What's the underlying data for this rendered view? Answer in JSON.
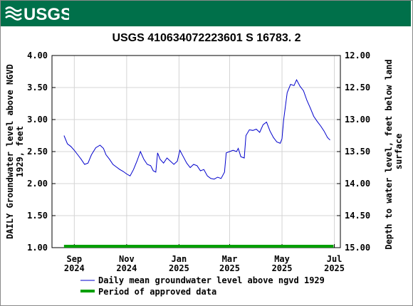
{
  "banner": {
    "logo_text": "USGS",
    "color": "#00704a"
  },
  "chart_data": {
    "type": "line",
    "title": "USGS 410634072223601 S 16783. 2",
    "ylabel_left": [
      "DAILY Groundwater level above NGVD",
      "1929, feet"
    ],
    "ylabel_right": [
      "Depth to water level, feet below land",
      "surface"
    ],
    "ylim_left": [
      1.0,
      4.0
    ],
    "ylim_right": [
      15.0,
      12.0
    ],
    "right_axis_inverted": true,
    "x_ticks": [
      {
        "month": "Sep",
        "year": "2024",
        "date": "2024-09-01"
      },
      {
        "month": "Nov",
        "year": "2024",
        "date": "2024-11-01"
      },
      {
        "month": "Jan",
        "year": "2025",
        "date": "2025-01-01"
      },
      {
        "month": "Mar",
        "year": "2025",
        "date": "2025-03-01"
      },
      {
        "month": "May",
        "year": "2025",
        "date": "2025-05-01"
      },
      {
        "month": "Jul",
        "year": "2025",
        "date": "2025-07-01"
      }
    ],
    "xlim": [
      "2024-08-06",
      "2025-07-08"
    ],
    "y_ticks_left": [
      "1.00",
      "1.50",
      "2.00",
      "2.50",
      "3.00",
      "3.50",
      "4.00"
    ],
    "y_ticks_right": [
      "15.00",
      "14.50",
      "14.00",
      "13.50",
      "13.00",
      "12.50",
      "12.00"
    ],
    "grid": "both",
    "series": [
      {
        "name": "Daily mean groundwater level above ngvd 1929",
        "color": "#0000cc",
        "points": [
          [
            "2024-08-20",
            2.75
          ],
          [
            "2024-08-24",
            2.62
          ],
          [
            "2024-08-28",
            2.58
          ],
          [
            "2024-09-01",
            2.52
          ],
          [
            "2024-09-05",
            2.45
          ],
          [
            "2024-09-09",
            2.38
          ],
          [
            "2024-09-13",
            2.3
          ],
          [
            "2024-09-17",
            2.32
          ],
          [
            "2024-09-21",
            2.45
          ],
          [
            "2024-09-26",
            2.56
          ],
          [
            "2024-10-01",
            2.6
          ],
          [
            "2024-10-05",
            2.55
          ],
          [
            "2024-10-08",
            2.45
          ],
          [
            "2024-10-12",
            2.38
          ],
          [
            "2024-10-16",
            2.3
          ],
          [
            "2024-10-20",
            2.26
          ],
          [
            "2024-10-24",
            2.22
          ],
          [
            "2024-10-28",
            2.19
          ],
          [
            "2024-11-01",
            2.15
          ],
          [
            "2024-11-05",
            2.12
          ],
          [
            "2024-11-09",
            2.22
          ],
          [
            "2024-11-13",
            2.35
          ],
          [
            "2024-11-17",
            2.5
          ],
          [
            "2024-11-21",
            2.38
          ],
          [
            "2024-11-25",
            2.3
          ],
          [
            "2024-11-29",
            2.28
          ],
          [
            "2024-12-02",
            2.2
          ],
          [
            "2024-12-05",
            2.18
          ],
          [
            "2024-12-07",
            2.48
          ],
          [
            "2024-12-10",
            2.38
          ],
          [
            "2024-12-14",
            2.32
          ],
          [
            "2024-12-18",
            2.4
          ],
          [
            "2024-12-22",
            2.35
          ],
          [
            "2024-12-26",
            2.3
          ],
          [
            "2024-12-30",
            2.35
          ],
          [
            "2025-01-02",
            2.52
          ],
          [
            "2025-01-06",
            2.42
          ],
          [
            "2025-01-10",
            2.32
          ],
          [
            "2025-01-14",
            2.25
          ],
          [
            "2025-01-18",
            2.3
          ],
          [
            "2025-01-22",
            2.28
          ],
          [
            "2025-01-26",
            2.2
          ],
          [
            "2025-01-30",
            2.22
          ],
          [
            "2025-02-03",
            2.12
          ],
          [
            "2025-02-07",
            2.08
          ],
          [
            "2025-02-11",
            2.07
          ],
          [
            "2025-02-15",
            2.1
          ],
          [
            "2025-02-19",
            2.08
          ],
          [
            "2025-02-23",
            2.18
          ],
          [
            "2025-02-25",
            2.48
          ],
          [
            "2025-03-01",
            2.5
          ],
          [
            "2025-03-05",
            2.52
          ],
          [
            "2025-03-09",
            2.5
          ],
          [
            "2025-03-11",
            2.55
          ],
          [
            "2025-03-14",
            2.42
          ],
          [
            "2025-03-18",
            2.4
          ],
          [
            "2025-03-20",
            2.75
          ],
          [
            "2025-03-24",
            2.84
          ],
          [
            "2025-03-28",
            2.83
          ],
          [
            "2025-04-01",
            2.85
          ],
          [
            "2025-04-05",
            2.8
          ],
          [
            "2025-04-09",
            2.92
          ],
          [
            "2025-04-13",
            2.96
          ],
          [
            "2025-04-17",
            2.82
          ],
          [
            "2025-04-21",
            2.72
          ],
          [
            "2025-04-25",
            2.65
          ],
          [
            "2025-04-29",
            2.63
          ],
          [
            "2025-05-01",
            2.7
          ],
          [
            "2025-05-03",
            3.0
          ],
          [
            "2025-05-07",
            3.42
          ],
          [
            "2025-05-11",
            3.55
          ],
          [
            "2025-05-15",
            3.53
          ],
          [
            "2025-05-18",
            3.62
          ],
          [
            "2025-05-22",
            3.52
          ],
          [
            "2025-05-26",
            3.45
          ],
          [
            "2025-05-30",
            3.3
          ],
          [
            "2025-06-03",
            3.18
          ],
          [
            "2025-06-07",
            3.05
          ],
          [
            "2025-06-11",
            2.97
          ],
          [
            "2025-06-15",
            2.9
          ],
          [
            "2025-06-19",
            2.82
          ],
          [
            "2025-06-23",
            2.72
          ],
          [
            "2025-06-26",
            2.68
          ]
        ]
      },
      {
        "name": "Period of approved data",
        "color": "#00a000",
        "start": "2024-08-20",
        "end": "2025-06-30",
        "value": 1.0
      }
    ],
    "legend_placement": "bottom"
  }
}
